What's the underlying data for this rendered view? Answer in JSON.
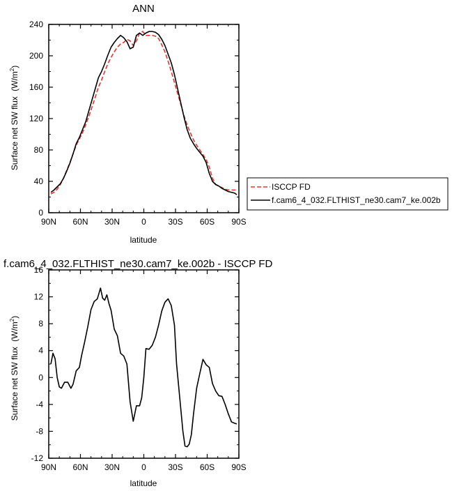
{
  "chart_data": [
    {
      "type": "line",
      "title": "ANN",
      "xlabel": "latitude",
      "ylabel": "Surface net SW flux",
      "yunit": "(W/m",
      "yunit_sup": "2",
      "yunit_close": ")",
      "xlim": [
        90,
        -90
      ],
      "ylim": [
        0,
        240
      ],
      "xticks": [
        {
          "value": 90,
          "label": "90N"
        },
        {
          "value": 60,
          "label": "60N"
        },
        {
          "value": 30,
          "label": "30N"
        },
        {
          "value": 0,
          "label": "0"
        },
        {
          "value": -30,
          "label": "30S"
        },
        {
          "value": -60,
          "label": "60S"
        },
        {
          "value": -90,
          "label": "90S"
        }
      ],
      "yticks": [
        0,
        40,
        80,
        120,
        160,
        200,
        240
      ],
      "legend_position": "right",
      "series": [
        {
          "name": "ISCCP FD",
          "color": "#e8322d",
          "dash": true,
          "x": [
            88,
            85,
            82,
            79,
            76,
            73,
            70,
            67,
            64,
            61,
            58,
            55,
            52,
            49,
            46,
            43,
            40,
            37,
            34,
            31,
            28,
            25,
            22,
            19,
            16,
            13,
            10,
            7,
            4,
            1,
            -2,
            -5,
            -8,
            -11,
            -14,
            -17,
            -20,
            -23,
            -26,
            -29,
            -32,
            -35,
            -38,
            -41,
            -44,
            -47,
            -50,
            -53,
            -56,
            -59,
            -62,
            -65,
            -68,
            -71,
            -74,
            -77,
            -80,
            -83,
            -86,
            -88
          ],
          "y": [
            24,
            26,
            30,
            36,
            44,
            54,
            64,
            75,
            86,
            94,
            102,
            112,
            123,
            135,
            147,
            160,
            169,
            180,
            190,
            198,
            205,
            211,
            215,
            217,
            221,
            219,
            213,
            219,
            229,
            231,
            226,
            226,
            226,
            225,
            222,
            214,
            205,
            193,
            180,
            166,
            152,
            138,
            124,
            112,
            102,
            93,
            86,
            80,
            74,
            68,
            58,
            44,
            36,
            34,
            32,
            30,
            29,
            29,
            29,
            29
          ]
        },
        {
          "name": "f.cam6_4_032.FLTHIST_ne30.cam7_ke.002b",
          "color": "#000000",
          "dash": false,
          "x": [
            88,
            85,
            82,
            79,
            76,
            73,
            70,
            67,
            64,
            61,
            58,
            55,
            52,
            49,
            46,
            43,
            40,
            37,
            34,
            31,
            28,
            25,
            22,
            19,
            16,
            13,
            10,
            7,
            4,
            1,
            -2,
            -5,
            -8,
            -11,
            -14,
            -17,
            -20,
            -23,
            -26,
            -29,
            -32,
            -35,
            -38,
            -41,
            -44,
            -47,
            -50,
            -53,
            -56,
            -59,
            -62,
            -65,
            -68,
            -71,
            -74,
            -77,
            -80,
            -83,
            -86,
            -88
          ],
          "y": [
            26,
            29,
            33,
            37,
            44,
            53,
            63,
            75,
            88,
            96,
            106,
            116,
            130,
            144,
            158,
            172,
            180,
            190,
            201,
            211,
            217,
            222,
            226,
            223,
            218,
            209,
            211,
            226,
            229,
            226,
            229,
            231,
            231,
            230,
            227,
            221,
            213,
            202,
            191,
            176,
            158,
            140,
            122,
            106,
            95,
            88,
            82,
            77,
            72,
            64,
            50,
            40,
            36,
            34,
            31,
            29,
            27,
            26,
            25,
            23
          ]
        }
      ]
    },
    {
      "type": "line",
      "title": "f.cam6_4_032.FLTHIST_ne30.cam7_ke.002b - ISCCP FD",
      "xlabel": "latitude",
      "ylabel": "Surface net SW flux",
      "yunit": "(W/m",
      "yunit_sup": "2",
      "yunit_close": ")",
      "xlim": [
        90,
        -90
      ],
      "ylim": [
        -12,
        16
      ],
      "xticks": [
        {
          "value": 90,
          "label": "90N"
        },
        {
          "value": 60,
          "label": "60N"
        },
        {
          "value": 30,
          "label": "30N"
        },
        {
          "value": 0,
          "label": "0"
        },
        {
          "value": -30,
          "label": "30S"
        },
        {
          "value": -60,
          "label": "60S"
        },
        {
          "value": -90,
          "label": "90S"
        }
      ],
      "yticks": [
        -12,
        -8,
        -4,
        0,
        4,
        8,
        12,
        16
      ],
      "series": [
        {
          "color": "#000000",
          "dash": false,
          "x": [
            88,
            86,
            84,
            82,
            80,
            78,
            75,
            72,
            69,
            67,
            64,
            61,
            59,
            56,
            53,
            50,
            47,
            44,
            41,
            39,
            37,
            35,
            33,
            31,
            28,
            25,
            22,
            19,
            16,
            13,
            10,
            7,
            4,
            2,
            0,
            -2,
            -5,
            -8,
            -11,
            -14,
            -17,
            -20,
            -23,
            -26,
            -29,
            -31,
            -34,
            -37,
            -39,
            -41,
            -43,
            -45,
            -47,
            -50,
            -53,
            -56,
            -59,
            -62,
            -65,
            -68,
            -71,
            -74,
            -77,
            -80,
            -83,
            -86,
            -88
          ],
          "y": [
            2,
            3.6,
            2.8,
            0,
            -1.4,
            -1.6,
            -0.7,
            -0.7,
            -1.6,
            -1,
            1,
            1.5,
            3.2,
            5.3,
            7.6,
            10.1,
            11.3,
            11.7,
            13.3,
            11.8,
            11.5,
            12.3,
            11,
            10,
            7.2,
            6.2,
            3.6,
            3.2,
            2,
            -3.6,
            -6.5,
            -4.2,
            -4.2,
            -3,
            0,
            4.3,
            4.2,
            4.8,
            6,
            7.8,
            9.9,
            11.2,
            11.7,
            10.7,
            7.8,
            2,
            -3,
            -8,
            -10.2,
            -10.3,
            -9.9,
            -8.5,
            -5.5,
            -1.6,
            0.6,
            2.7,
            1.9,
            1.5,
            -0.9,
            -2,
            -2.7,
            -2.8,
            -4,
            -5.4,
            -6.6,
            -6.8,
            -6.9
          ]
        }
      ]
    }
  ]
}
